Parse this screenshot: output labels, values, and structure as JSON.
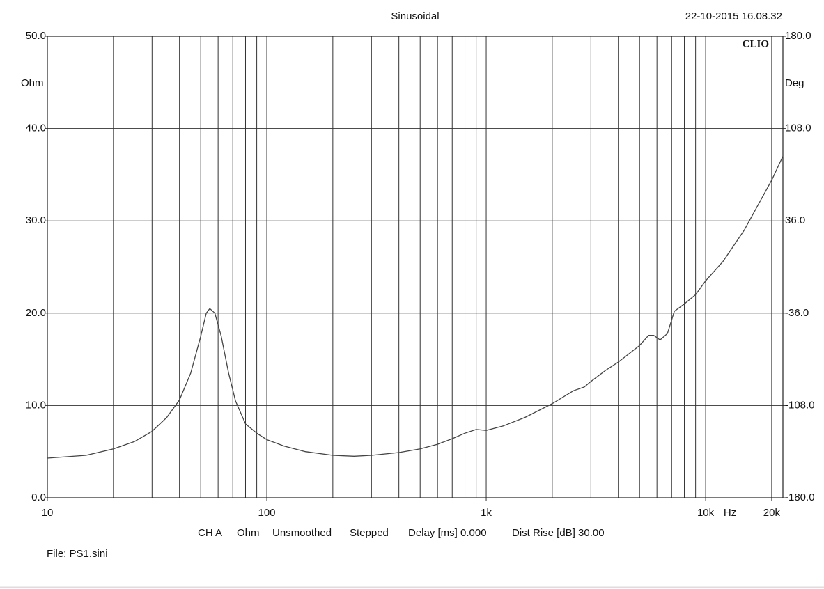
{
  "chart_data": {
    "type": "line",
    "title": "Sinusoidal",
    "timestamp": "22-10-2015 16.08.32",
    "brand": "CLIO",
    "ylabel": "Ohm",
    "y2label": "Deg",
    "xunit": "Hz",
    "log_x": true,
    "grid": true,
    "xlim": [
      10,
      22500
    ],
    "xticks": [
      10,
      100,
      {
        "value": 1000,
        "label": "1k"
      },
      {
        "value": 10000,
        "label": "10k"
      },
      {
        "value": 20000,
        "label": "20k"
      }
    ],
    "xgrid": [
      20,
      30,
      40,
      50,
      60,
      70,
      80,
      90,
      200,
      300,
      400,
      500,
      600,
      700,
      800,
      900,
      2000,
      3000,
      4000,
      5000,
      6000,
      7000,
      8000,
      9000
    ],
    "ylim": [
      0,
      50
    ],
    "yticks": [
      {
        "value": 0,
        "label": "0.0"
      },
      {
        "value": 10,
        "label": "10.0"
      },
      {
        "value": 20,
        "label": "20.0"
      },
      {
        "value": 30,
        "label": "30.0"
      },
      {
        "value": 40,
        "label": "40.0"
      },
      {
        "value": 50,
        "label": "50.0"
      }
    ],
    "y2lim": [
      -180,
      180
    ],
    "y2ticks": [
      {
        "value": -180,
        "label": "-180.0"
      },
      {
        "value": -108,
        "label": "-108.0"
      },
      {
        "value": -36,
        "label": "-36.0"
      },
      {
        "value": 36,
        "label": "36.0"
      },
      {
        "value": 108,
        "label": "108.0"
      },
      {
        "value": 180,
        "label": "180.0"
      }
    ],
    "footer_items": [
      "CH A",
      "Ohm",
      "Unsmoothed",
      "Stepped",
      "Delay [ms] 0.000",
      "Dist Rise [dB] 30.00"
    ],
    "file": "File: PS1.sini",
    "x": [
      10,
      15,
      20,
      25,
      30,
      35,
      40,
      45,
      50,
      53,
      55,
      58,
      62,
      67,
      72,
      80,
      90,
      100,
      120,
      150,
      200,
      250,
      300,
      400,
      500,
      600,
      700,
      800,
      900,
      1000,
      1200,
      1500,
      2000,
      2500,
      2800,
      3000,
      3500,
      4000,
      5000,
      5500,
      5800,
      6200,
      6700,
      7200,
      8000,
      9000,
      10000,
      12000,
      15000,
      20000,
      22500
    ],
    "series": [
      {
        "color": "#444444",
        "values": [
          4.3,
          4.6,
          5.3,
          6.1,
          7.2,
          8.7,
          10.6,
          13.5,
          17.5,
          20.0,
          20.5,
          20.0,
          17.5,
          13.5,
          10.5,
          8.0,
          7.0,
          6.3,
          5.6,
          5.0,
          4.6,
          4.5,
          4.6,
          4.9,
          5.3,
          5.8,
          6.4,
          7.0,
          7.4,
          7.3,
          7.8,
          8.7,
          10.2,
          11.6,
          12.0,
          12.6,
          13.8,
          14.7,
          16.5,
          17.6,
          17.6,
          17.1,
          17.8,
          20.2,
          21.0,
          22.0,
          23.5,
          25.6,
          29.0,
          34.4,
          37.0
        ]
      }
    ]
  }
}
